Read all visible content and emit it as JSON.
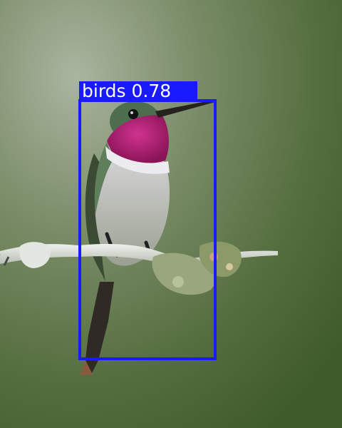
{
  "image": {
    "subject": "hummingbird-on-lichen-branch",
    "background_color": "#4f6a3c"
  },
  "detection": {
    "class": "birds",
    "score": "0.78",
    "label": "birds 0.78",
    "box_color": "#1a1aff"
  }
}
